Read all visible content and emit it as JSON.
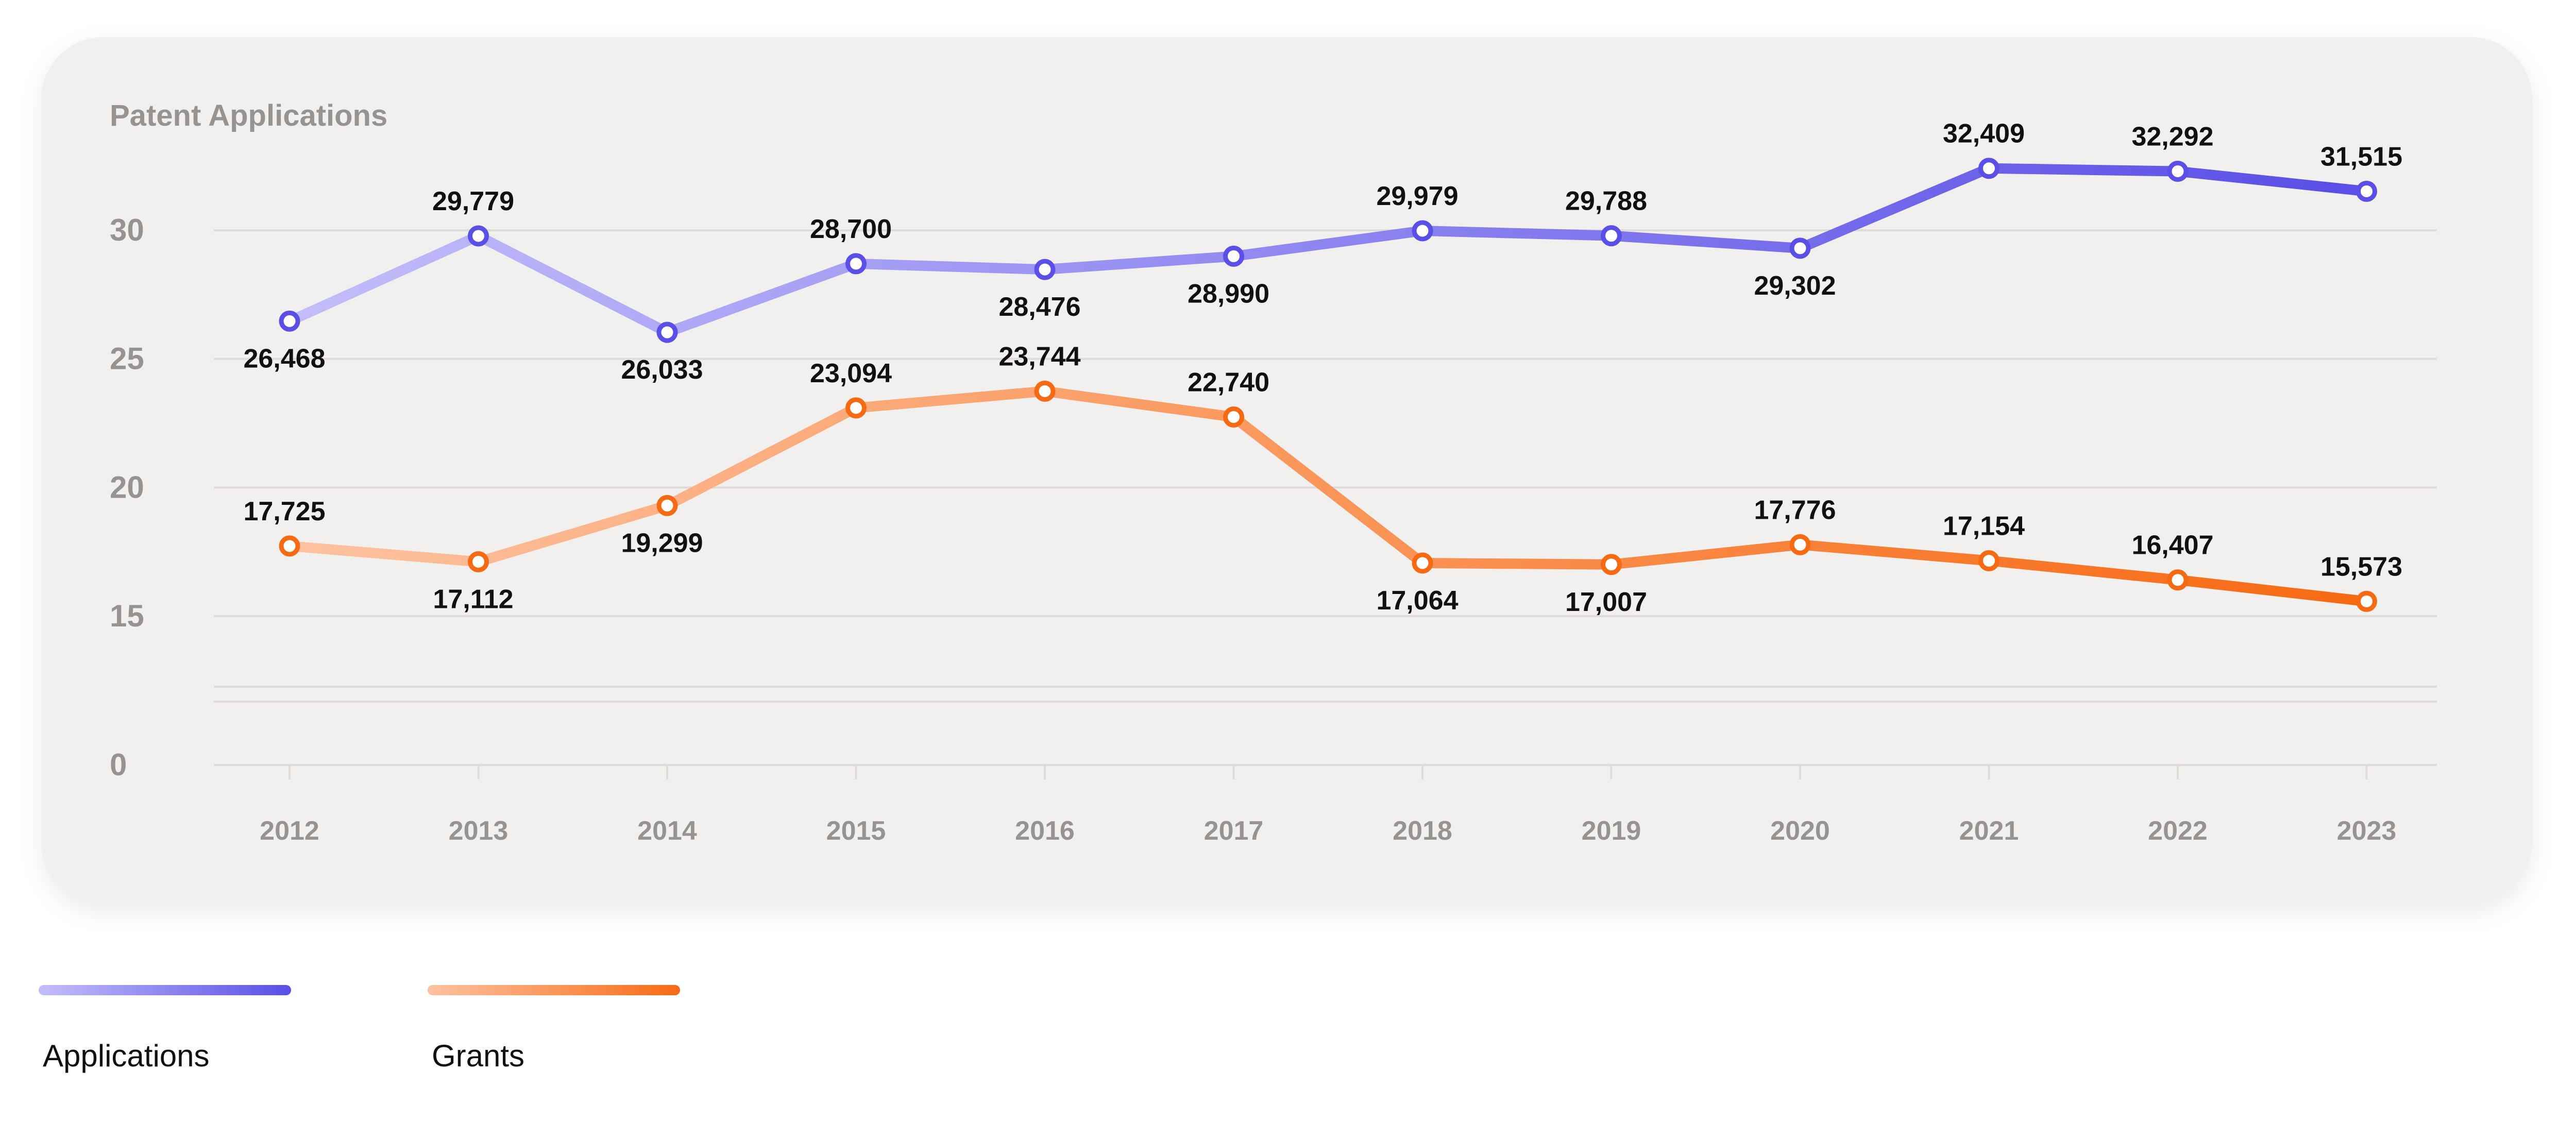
{
  "chart_data": {
    "type": "line",
    "title": "Patent Applications",
    "categories": [
      "2012",
      "2013",
      "2014",
      "2015",
      "2016",
      "2017",
      "2018",
      "2019",
      "2020",
      "2021",
      "2022",
      "2023"
    ],
    "series": [
      {
        "name": "Applications",
        "values": [
          26468,
          29779,
          26033,
          28700,
          28476,
          28990,
          29979,
          29788,
          29302,
          32409,
          32292,
          31515
        ],
        "labels": [
          "26,468",
          "29,779",
          "26,033",
          "28,700",
          "28,476",
          "28,990",
          "29,979",
          "29,788",
          "29,302",
          "32,409",
          "32,292",
          "31,515"
        ],
        "color_start": "#c3bdfa",
        "color_end": "#5a4fe6"
      },
      {
        "name": "Grants",
        "values": [
          17725,
          17112,
          19299,
          23094,
          23744,
          22740,
          17064,
          17007,
          17776,
          17154,
          16407,
          15573
        ],
        "labels": [
          "17,725",
          "17,112",
          "19,299",
          "23,094",
          "23,744",
          "22,740",
          "17,064",
          "17,007",
          "17,776",
          "17,154",
          "16,407",
          "15,573"
        ],
        "color_start": "#fdc2a0",
        "color_end": "#f76a14"
      }
    ],
    "y_ticks": [
      {
        "value": 30000,
        "label": "30"
      },
      {
        "value": 25000,
        "label": "25"
      },
      {
        "value": 20000,
        "label": "20"
      },
      {
        "value": 15000,
        "label": "15"
      },
      {
        "value": 0,
        "label": "0"
      }
    ],
    "y_axis_break": true,
    "grid": true,
    "legend": "bottom-left"
  },
  "colors": {
    "card_background": "#f2f0ef",
    "grid": "#dedbd9",
    "axis_text": "#979391",
    "label_text": "#111111"
  }
}
